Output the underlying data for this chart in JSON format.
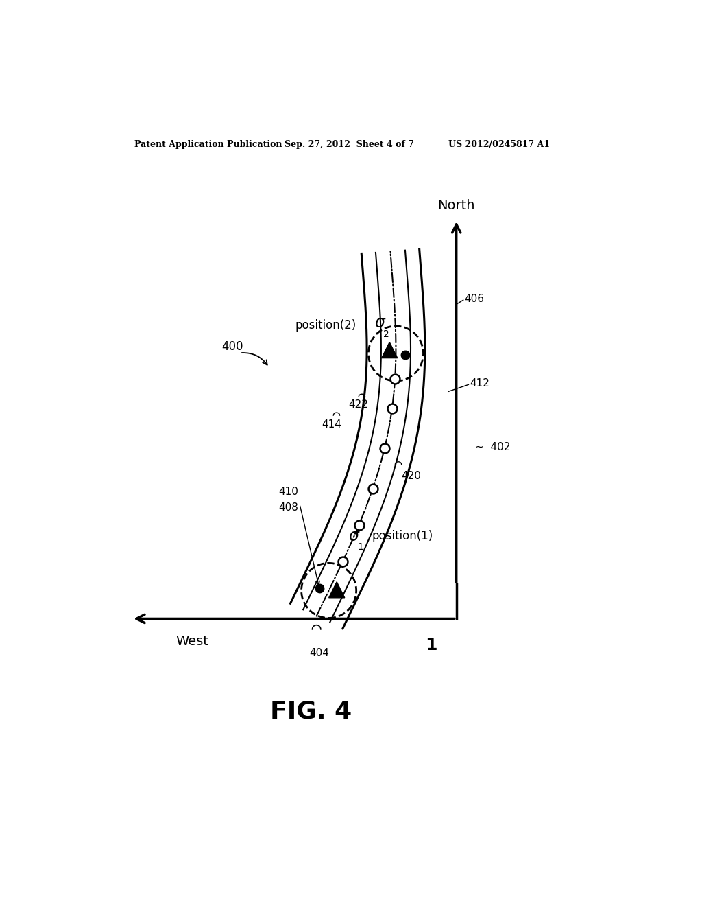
{
  "bg_color": "#ffffff",
  "header_left": "Patent Application Publication",
  "header_center": "Sep. 27, 2012  Sheet 4 of 7",
  "header_right": "US 2012/0245817 A1",
  "fig_label": "FIG. 4",
  "label_400": "400",
  "label_402": "402",
  "label_404": "404",
  "label_406": "406",
  "label_408": "408",
  "label_410": "410",
  "label_412": "412",
  "label_414": "414",
  "label_420": "420",
  "label_422": "422",
  "label_north": "North",
  "label_west": "West",
  "label_1": "1",
  "label_pos1": "position(1)",
  "label_pos2": "position(2)",
  "label_sigma1": "σ",
  "label_sigma2": "σ"
}
